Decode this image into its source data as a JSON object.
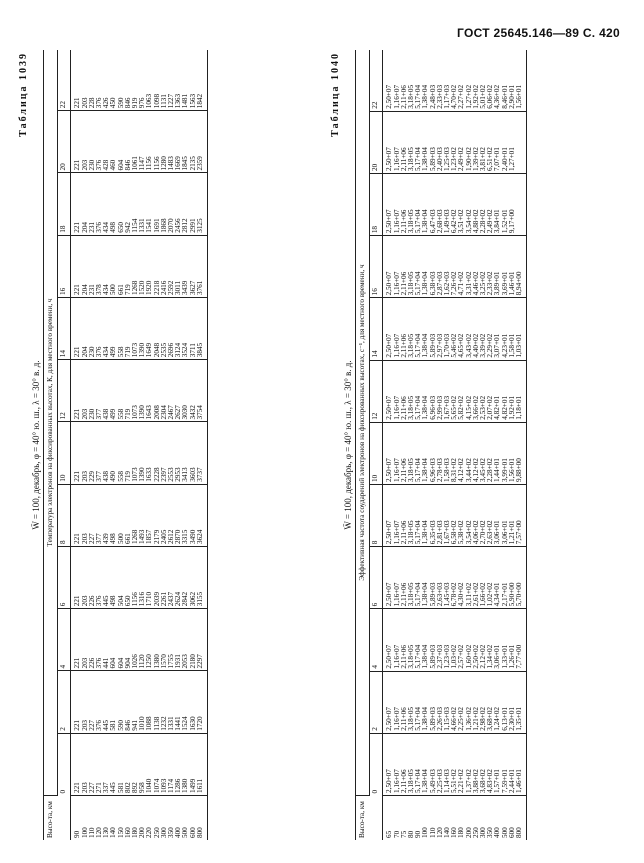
{
  "header": "ГОСТ 25645.146—89 С. 420",
  "table1": {
    "caption": "Таблица 1039",
    "title": "W̄ = 100, декабрь, φ = 40° ю. ш., λ = 30° в. д.",
    "span_header": "Температура электронов на фиксированных высотах, К, для местного времени, ч",
    "height_header": "Высо-та, км",
    "times": [
      "0",
      "2",
      "4",
      "6",
      "8",
      "10",
      "12",
      "14",
      "16",
      "18",
      "20",
      "22"
    ],
    "rows": [
      [
        "90",
        "221",
        "221",
        "221",
        "221",
        "221",
        "221",
        "221",
        "221",
        "221",
        "221",
        "221",
        "221"
      ],
      [
        "100",
        "203",
        "203",
        "203",
        "203",
        "203",
        "203",
        "203",
        "204",
        "204",
        "204",
        "203",
        "203"
      ],
      [
        "110",
        "227",
        "227",
        "226",
        "226",
        "227",
        "229",
        "230",
        "230",
        "231",
        "231",
        "230",
        "228"
      ],
      [
        "120",
        "271",
        "376",
        "376",
        "376",
        "377",
        "377",
        "377",
        "376",
        "378",
        "376",
        "376",
        "376"
      ],
      [
        "130",
        "337",
        "445",
        "441",
        "445",
        "439",
        "438",
        "438",
        "434",
        "434",
        "434",
        "428",
        "426"
      ],
      [
        "140",
        "445",
        "581",
        "604",
        "498",
        "498",
        "490",
        "499",
        "499",
        "500",
        "498",
        "460",
        "450"
      ],
      [
        "150",
        "581",
        "590",
        "604",
        "504",
        "500",
        "558",
        "558",
        "558",
        "661",
        "650",
        "604",
        "590"
      ],
      [
        "160",
        "802",
        "846",
        "904",
        "650",
        "661",
        "719",
        "719",
        "719",
        "719",
        "942",
        "846",
        "846"
      ],
      [
        "180",
        "892",
        "941",
        "1026",
        "1156",
        "1268",
        "1073",
        "1073",
        "1073",
        "1268",
        "1154",
        "1061",
        "919"
      ],
      [
        "200",
        "958",
        "1010",
        "1120",
        "1316",
        "1493",
        "1390",
        "1390",
        "1390",
        "1520",
        "1331",
        "1147",
        "976"
      ],
      [
        "220",
        "1040",
        "1088",
        "1250",
        "1710",
        "1857",
        "1633",
        "1643",
        "1649",
        "1920",
        "1541",
        "1156",
        "1063"
      ],
      [
        "250",
        "1074",
        "1138",
        "1380",
        "2039",
        "2179",
        "2228",
        "2008",
        "2048",
        "2218",
        "1691",
        "1156",
        "1098"
      ],
      [
        "300",
        "1093",
        "1232",
        "1570",
        "2261",
        "2405",
        "2397",
        "2304",
        "2535",
        "2416",
        "1868",
        "1280",
        "1131"
      ],
      [
        "350",
        "1174",
        "1331",
        "1755",
        "2437",
        "2612",
        "2553",
        "2467",
        "2696",
        "2592",
        "2070",
        "1483",
        "1227"
      ],
      [
        "400",
        "1286",
        "1441",
        "1931",
        "2624",
        "2870",
        "2953",
        "2627",
        "3124",
        "3011",
        "2456",
        "1669",
        "1363"
      ],
      [
        "500",
        "1380",
        "1524",
        "2053",
        "2842",
        "3315",
        "3413",
        "3030",
        "3524",
        "3439",
        "2812",
        "1845",
        "1481"
      ],
      [
        "600",
        "1499",
        "1630",
        "2180",
        "3062",
        "3490",
        "3603",
        "3432",
        "3711",
        "3627",
        "2991",
        "2135",
        "1563"
      ],
      [
        "800",
        "1611",
        "1720",
        "2297",
        "3155",
        "3624",
        "3737",
        "3754",
        "3845",
        "3761",
        "3125",
        "2359",
        "1842"
      ]
    ]
  },
  "table2": {
    "caption": "Таблица 1040",
    "title": "W̄ = 100, декабрь, φ = 40° ю. ш., λ = 30° в. д.",
    "span_header": "Эффективная частота соударений электронов на фиксированных высотах, с⁻¹, для местного времени, ч",
    "height_header": "Высо-та, км",
    "times": [
      "0",
      "2",
      "4",
      "6",
      "8",
      "10",
      "12",
      "14",
      "16",
      "18",
      "20",
      "22"
    ],
    "rows": [
      [
        "65",
        "2,50+07",
        "2,50+07",
        "2,50+07",
        "2,50+07",
        "2,50+07",
        "2,50+07",
        "2,50+07",
        "2,50+07",
        "2,50+07",
        "2,50+07",
        "2,50+07",
        "2,50+07"
      ],
      [
        "70",
        "1,16+07",
        "1,16+07",
        "1,16+07",
        "1,16+07",
        "1,16+07",
        "1,16+07",
        "1,16+07",
        "1,16+07",
        "1,16+07",
        "1,16+07",
        "1,16+07",
        "1,16+07"
      ],
      [
        "75",
        "2,11+06",
        "2,11+06",
        "2,11+06",
        "2,11+06",
        "2,11+06",
        "2,11+06",
        "2,11+06",
        "2,11+06",
        "2,11+06",
        "2,11+06",
        "2,11+06",
        "2,11+06"
      ],
      [
        "80",
        "3,18+05",
        "3,18+05",
        "3,18+05",
        "3,18+05",
        "3,18+05",
        "3,18+05",
        "3,18+05",
        "3,18+05",
        "3,18+05",
        "3,18+05",
        "3,18+05",
        "3,18+05"
      ],
      [
        "90",
        "5,17+04",
        "5,17+04",
        "5,17+04",
        "5,17+04",
        "5,17+04",
        "5,17+04",
        "5,17+04",
        "5,17+04",
        "5,17+04",
        "5,17+04",
        "5,17+04",
        "5,17+04"
      ],
      [
        "100",
        "1,38+04",
        "1,38+04",
        "1,38+04",
        "1,38+04",
        "1,38+04",
        "1,38+04",
        "1,38+04",
        "1,38+04",
        "1,38+04",
        "1,38+04",
        "1,38+04",
        "1,38+04"
      ],
      [
        "110",
        "5,49+03",
        "5,89+03",
        "5,89+03",
        "5,89+03",
        "6,35+03",
        "6,96+03",
        "6,96+03",
        "5,89+03",
        "6,38+03",
        "6,47+03",
        "5,89+03",
        "2,48+03"
      ],
      [
        "120",
        "2,25+03",
        "2,26+03",
        "2,37+03",
        "2,63+03",
        "2,81+03",
        "2,78+03",
        "2,99+03",
        "2,97+03",
        "2,87+03",
        "2,68+03",
        "2,40+03",
        "2,33+03"
      ],
      [
        "140",
        "1,14+03",
        "1,15+03",
        "1,23+03",
        "1,45+03",
        "1,67+03",
        "1,58+03",
        "1,67+03",
        "1,70+03",
        "1,62+03",
        "1,49+03",
        "1,25+03",
        "1,17+03"
      ],
      [
        "160",
        "5,51+02",
        "4,66+02",
        "1,03+02",
        "6,78+02",
        "6,58+02",
        "8,31+02",
        "5,65+02",
        "5,46+02",
        "7,26+02",
        "6,42+02",
        "1,23+02",
        "4,70+02"
      ],
      [
        "180",
        "2,21+02",
        "2,25+02",
        "2,57+02",
        "4,30+02",
        "5,38+02",
        "4,12+02",
        "5,82+02",
        "4,65+02",
        "4,71+02",
        "3,51+02",
        "2,49+02",
        "2,27+02"
      ],
      [
        "200",
        "1,37+02",
        "1,36+02",
        "1,60+02",
        "3,11+02",
        "3,54+02",
        "3,44+02",
        "4,15+02",
        "3,43+02",
        "3,31+02",
        "3,54+02",
        "1,90+02",
        "1,27+02"
      ],
      [
        "250",
        "3,88+02",
        "1,21+02",
        "2,50+02",
        "2,61+02",
        "4,06+02",
        "4,12+02",
        "3,66+02",
        "4,40+02",
        "4,46+02",
        "4,88+02",
        "1,39+02",
        "1,92+02"
      ],
      [
        "300",
        "3,68+02",
        "2,98+02",
        "2,12+02",
        "1,66+02",
        "2,70+02",
        "3,45+02",
        "2,53+02",
        "3,39+02",
        "3,25+02",
        "2,28+02",
        "3,81+02",
        "5,01+02"
      ],
      [
        "350",
        "4,83+02",
        "3,68+02",
        "1,34+02",
        "1,02+02",
        "2,63+02",
        "2,28+02",
        "2,07+02",
        "2,29+02",
        "2,33+02",
        "2,49+02",
        "6,51+02",
        "6,06+02"
      ],
      [
        "400",
        "1,57+01",
        "1,24+02",
        "3,06+01",
        "4,34+01",
        "3,06+01",
        "1,44+01",
        "4,82+01",
        "3,07+01",
        "3,89+01",
        "3,84+01",
        "7,07+01",
        "4,36+02"
      ],
      [
        "500",
        "7,59+01",
        "6,13+01",
        "1,33+01",
        "2,17+01",
        "3,06+01",
        "3,99+01",
        "4,82+01",
        "4,23+01",
        "3,69+01",
        "1,52+01",
        "2,40+01",
        "8,46+01"
      ],
      [
        "600",
        "2,44+01",
        "2,30+01",
        "1,26+01",
        "5,90+00",
        "1,21+01",
        "1,56+01",
        "1,92+01",
        "1,58+01",
        "1,46+01",
        "9,17+00",
        "1,27+01",
        "2,90+01"
      ],
      [
        "800",
        "1,46+01",
        "1,35+01",
        "7,77+00",
        "5,70+00",
        "7,57+00",
        "9,88+00",
        "1,18+01",
        "1,03+01",
        "8,94+00",
        "",
        "",
        "1,56+01"
      ]
    ]
  }
}
